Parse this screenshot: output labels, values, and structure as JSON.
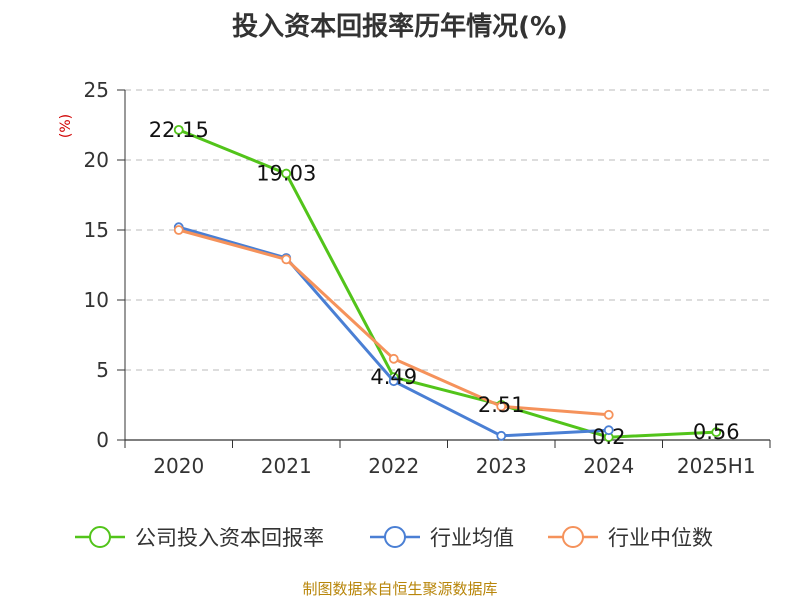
{
  "chart_data": {
    "type": "line",
    "title": "投入资本回报率历年情况(%)",
    "y_unit": "(%)",
    "categories": [
      "2020",
      "2021",
      "2022",
      "2023",
      "2024",
      "2025H1"
    ],
    "ylim": [
      0,
      25
    ],
    "yticks": [
      "0",
      "5",
      "10",
      "15",
      "20",
      "25"
    ],
    "grid": "horizontal dashed",
    "legend_position": "bottom",
    "series": [
      {
        "name": "公司投入资本回报率",
        "color": "#52c41a",
        "values": [
          22.15,
          19.03,
          4.49,
          2.51,
          0.2,
          0.56
        ],
        "data_labels": [
          "22.15",
          "19.03",
          "4.49",
          "2.51",
          "0.2",
          "0.56"
        ]
      },
      {
        "name": "行业均值",
        "color": "#4a7fd4",
        "values": [
          15.2,
          13.0,
          4.2,
          0.3,
          0.7,
          null
        ]
      },
      {
        "name": "行业中位数",
        "color": "#f5925b",
        "values": [
          15.0,
          12.9,
          5.8,
          2.4,
          1.8,
          null
        ]
      }
    ]
  },
  "source_note": "制图数据来自恒生聚源数据库"
}
